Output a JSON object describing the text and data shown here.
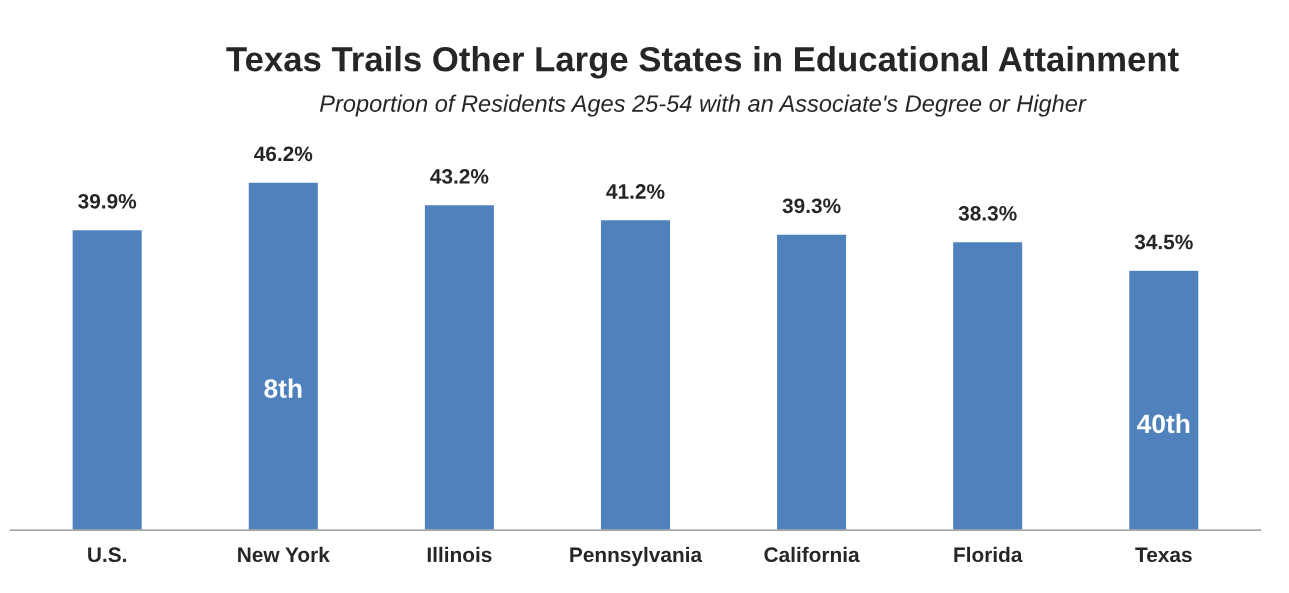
{
  "chart_data": {
    "type": "bar",
    "title": "Texas Trails Other Large States in Educational Attainment",
    "subtitle": "Proportion of Residents Ages 25-54 with an Associate's Degree or Higher",
    "categories": [
      "U.S.",
      "New York",
      "Illinois",
      "Pennsylvania",
      "California",
      "Florida",
      "Texas"
    ],
    "values": [
      39.9,
      46.2,
      43.2,
      41.2,
      39.3,
      38.3,
      34.5
    ],
    "value_labels": [
      "39.9%",
      "46.2%",
      "43.2%",
      "41.2%",
      "39.3%",
      "38.3%",
      "34.5%"
    ],
    "color": "#4f81bd",
    "annotations": [
      "8th",
      "40th"
    ],
    "grid": false,
    "legend": false
  }
}
